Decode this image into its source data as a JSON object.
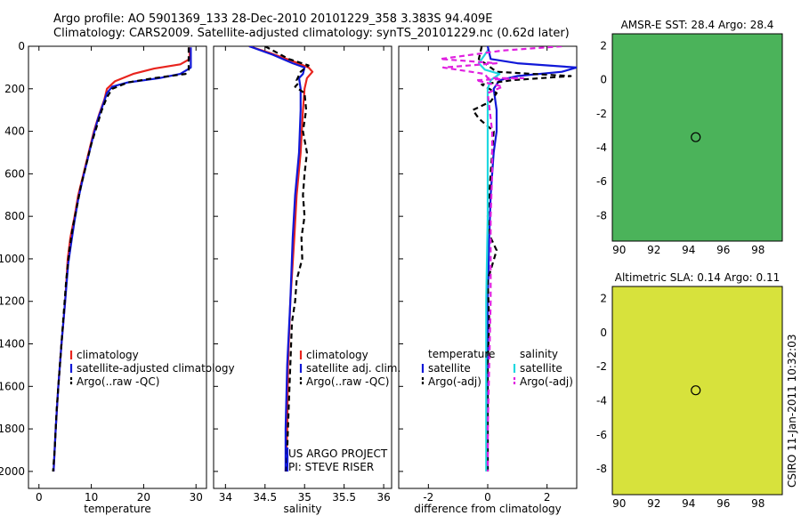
{
  "header": {
    "line1": "Argo profile: AO 5901369_133 28-Dec-2010 20101229_358 3.383S 94.409E",
    "line2": "Climatology: CARS2009. Satellite-adjusted climatology: synTS_20101229.nc (0.62d later)"
  },
  "colors": {
    "red": "#e8241e",
    "blue": "#1018d8",
    "black": "#000000",
    "cyan": "#20d8e0",
    "magenta": "#e020e0",
    "land": "#f5b98f"
  },
  "chart_data": [
    {
      "type": "line",
      "id": "temperature",
      "xlabel": "temperature",
      "ylabel": "",
      "xlim": [
        -2,
        32
      ],
      "ylim": [
        2080,
        0
      ],
      "xticks": [
        0,
        10,
        20,
        30
      ],
      "yticks": [
        0,
        200,
        400,
        600,
        800,
        1000,
        1200,
        1400,
        1600,
        1800,
        2000
      ],
      "legend": [
        "climatology",
        "satellite-adjusted climatology",
        "Argo(..raw -QC)"
      ],
      "series": [
        {
          "name": "climatology",
          "color": "red",
          "dash": "",
          "points": [
            [
              28.8,
              5
            ],
            [
              28.8,
              60
            ],
            [
              27,
              85
            ],
            [
              22,
              105
            ],
            [
              18,
              130
            ],
            [
              14.5,
              165
            ],
            [
              13,
              200
            ],
            [
              12.5,
              250
            ],
            [
              11.5,
              320
            ],
            [
              10.5,
              400
            ],
            [
              9.5,
              500
            ],
            [
              8.5,
              600
            ],
            [
              7.5,
              700
            ],
            [
              6.8,
              800
            ],
            [
              6,
              900
            ],
            [
              5.5,
              1000
            ],
            [
              5,
              1200
            ],
            [
              4.3,
              1400
            ],
            [
              3.7,
              1600
            ],
            [
              3.2,
              1800
            ],
            [
              2.8,
              2000
            ]
          ]
        },
        {
          "name": "satellite-adjusted climatology",
          "color": "blue",
          "dash": "",
          "points": [
            [
              29,
              5
            ],
            [
              29,
              100
            ],
            [
              27,
              130
            ],
            [
              23,
              150
            ],
            [
              17,
              170
            ],
            [
              14,
              190
            ],
            [
              13,
              220
            ],
            [
              12.3,
              270
            ],
            [
              11.3,
              340
            ],
            [
              10.4,
              420
            ],
            [
              9.4,
              520
            ],
            [
              8.4,
              620
            ],
            [
              7.5,
              720
            ],
            [
              6.8,
              820
            ],
            [
              6.2,
              920
            ],
            [
              5.6,
              1020
            ],
            [
              5,
              1200
            ],
            [
              4.3,
              1400
            ],
            [
              3.7,
              1600
            ],
            [
              3.2,
              1800
            ],
            [
              2.8,
              2000
            ]
          ]
        },
        {
          "name": "Argo(..raw -QC)",
          "color": "black",
          "dash": "6,4",
          "points": [
            [
              28.6,
              5
            ],
            [
              28.6,
              110
            ],
            [
              28,
              130
            ],
            [
              22,
              150
            ],
            [
              17,
              170
            ],
            [
              14,
              200
            ],
            [
              13,
              240
            ],
            [
              12,
              300
            ],
            [
              11,
              380
            ],
            [
              10,
              460
            ],
            [
              9,
              560
            ],
            [
              8,
              660
            ],
            [
              7.2,
              760
            ],
            [
              6.4,
              860
            ],
            [
              5.8,
              960
            ],
            [
              5.2,
              1100
            ],
            [
              4.6,
              1300
            ],
            [
              4,
              1500
            ],
            [
              3.4,
              1700
            ],
            [
              3,
              1900
            ],
            [
              2.7,
              2000
            ]
          ]
        }
      ]
    },
    {
      "type": "line",
      "id": "salinity",
      "xlabel": "salinity",
      "ylabel": "",
      "xlim": [
        33.85,
        36.1
      ],
      "ylim": [
        2080,
        0
      ],
      "xticks": [
        34,
        34.5,
        35,
        35.5,
        36
      ],
      "yticks": [],
      "legend": [
        "climatology",
        "satellite adj. clim.",
        "Argo(..raw -QC)"
      ],
      "series": [
        {
          "name": "climatology",
          "color": "red",
          "dash": "",
          "points": [
            [
              34.3,
              0
            ],
            [
              34.55,
              30
            ],
            [
              34.85,
              70
            ],
            [
              35.05,
              100
            ],
            [
              35.1,
              120
            ],
            [
              35.03,
              150
            ],
            [
              35.0,
              200
            ],
            [
              34.98,
              300
            ],
            [
              34.95,
              500
            ],
            [
              34.9,
              700
            ],
            [
              34.87,
              900
            ],
            [
              34.82,
              1200
            ],
            [
              34.79,
              1500
            ],
            [
              34.78,
              1800
            ],
            [
              34.76,
              2000
            ]
          ]
        },
        {
          "name": "satellite adj. clim.",
          "color": "blue",
          "dash": "",
          "points": [
            [
              34.3,
              0
            ],
            [
              34.6,
              40
            ],
            [
              34.85,
              80
            ],
            [
              35.0,
              100
            ],
            [
              34.98,
              130
            ],
            [
              34.93,
              150
            ],
            [
              34.95,
              200
            ],
            [
              34.95,
              300
            ],
            [
              34.93,
              500
            ],
            [
              34.88,
              700
            ],
            [
              34.85,
              900
            ],
            [
              34.82,
              1200
            ],
            [
              34.78,
              1500
            ],
            [
              34.76,
              1800
            ],
            [
              34.76,
              2000
            ]
          ]
        },
        {
          "name": "Argo(..raw -QC)",
          "color": "black",
          "dash": "6,4",
          "points": [
            [
              34.5,
              0
            ],
            [
              34.65,
              30
            ],
            [
              34.8,
              60
            ],
            [
              35.05,
              90
            ],
            [
              34.95,
              120
            ],
            [
              34.9,
              160
            ],
            [
              34.92,
              175
            ],
            [
              34.88,
              190
            ],
            [
              35.0,
              220
            ],
            [
              35.02,
              300
            ],
            [
              34.98,
              400
            ],
            [
              35.03,
              500
            ],
            [
              35.0,
              600
            ],
            [
              34.98,
              700
            ],
            [
              35.0,
              800
            ],
            [
              34.96,
              900
            ],
            [
              34.97,
              1000
            ],
            [
              34.9,
              1100
            ],
            [
              34.88,
              1200
            ],
            [
              34.84,
              1300
            ],
            [
              34.82,
              1500
            ],
            [
              34.8,
              1700
            ],
            [
              34.78,
              1900
            ],
            [
              34.77,
              2000
            ]
          ]
        }
      ],
      "annotations": [
        "US ARGO PROJECT",
        "PI: STEVE RISER"
      ]
    },
    {
      "type": "line",
      "id": "difference",
      "xlabel": "difference from climatology",
      "ylabel": "",
      "xlim": [
        -3,
        3
      ],
      "ylim": [
        2080,
        0
      ],
      "xticks": [
        -2,
        0,
        2
      ],
      "yticks": [],
      "legend_groups": [
        {
          "heading": "temperature",
          "items": [
            "satellite",
            "Argo(-adj)"
          ]
        },
        {
          "heading": "salinity",
          "items": [
            "satellite",
            "Argo(-adj)"
          ]
        }
      ],
      "series": [
        {
          "name": "temperature satellite",
          "color": "blue",
          "dash": "",
          "points": [
            [
              0,
              0
            ],
            [
              0.1,
              60
            ],
            [
              1,
              80
            ],
            [
              3,
              100
            ],
            [
              2.5,
              120
            ],
            [
              1,
              140
            ],
            [
              0.4,
              160
            ],
            [
              0.2,
              200
            ],
            [
              0.3,
              300
            ],
            [
              0.3,
              400
            ],
            [
              0.2,
              500
            ],
            [
              0.1,
              700
            ],
            [
              0.05,
              900
            ],
            [
              0,
              1200
            ],
            [
              0,
              1500
            ],
            [
              0,
              2000
            ]
          ]
        },
        {
          "name": "temperature Argo(-adj)",
          "color": "black",
          "dash": "6,4",
          "points": [
            [
              -0.2,
              0
            ],
            [
              -0.3,
              60
            ],
            [
              0.3,
              120
            ],
            [
              2.8,
              140
            ],
            [
              0.8,
              160
            ],
            [
              -0.2,
              180
            ],
            [
              0.3,
              220
            ],
            [
              0.1,
              260
            ],
            [
              -0.5,
              300
            ],
            [
              -0.3,
              340
            ],
            [
              0.2,
              400
            ],
            [
              0.1,
              600
            ],
            [
              0,
              800
            ],
            [
              0.1,
              900
            ],
            [
              0.3,
              960
            ],
            [
              0,
              1100
            ],
            [
              0.05,
              1300
            ],
            [
              0,
              1500
            ],
            [
              0,
              2000
            ]
          ]
        },
        {
          "name": "salinity satellite",
          "color": "cyan",
          "dash": "",
          "points": [
            [
              0,
              20
            ],
            [
              -0.3,
              80
            ],
            [
              -0.1,
              110
            ],
            [
              0.4,
              130
            ],
            [
              0.1,
              160
            ],
            [
              0,
              200
            ],
            [
              0,
              400
            ],
            [
              0,
              800
            ],
            [
              -0.05,
              1200
            ],
            [
              -0.05,
              1600
            ],
            [
              -0.05,
              2000
            ]
          ]
        },
        {
          "name": "salinity Argo(-adj)",
          "color": "magenta",
          "dash": "6,4",
          "points": [
            [
              2.5,
              0
            ],
            [
              0.5,
              20
            ],
            [
              -1.6,
              60
            ],
            [
              0.3,
              80
            ],
            [
              -1.5,
              100
            ],
            [
              -0.1,
              130
            ],
            [
              0,
              150
            ],
            [
              1.2,
              150
            ],
            [
              -0.4,
              160
            ],
            [
              0.5,
              190
            ],
            [
              0,
              220
            ],
            [
              0.15,
              400
            ],
            [
              0.15,
              600
            ],
            [
              0.1,
              800
            ],
            [
              0.1,
              1000
            ],
            [
              0.1,
              1200
            ],
            [
              0.05,
              1500
            ],
            [
              0,
              1800
            ],
            [
              0,
              2000
            ]
          ]
        }
      ]
    },
    {
      "type": "heatmap",
      "id": "sst-map",
      "title": "AMSR-E SST: 28.4 Argo: 28.4",
      "xlim": [
        89.6,
        99.4
      ],
      "ylim": [
        -9.5,
        2.7
      ],
      "xticks": [
        90,
        92,
        94,
        96,
        98
      ],
      "yticks": [
        -8,
        -6,
        -4,
        -2,
        0,
        2
      ],
      "argo_position": {
        "lon": 94.409,
        "lat": -3.383
      }
    },
    {
      "type": "heatmap",
      "id": "sla-map",
      "title": "Altimetric SLA: 0.14 Argo: 0.11",
      "xlim": [
        89.6,
        99.4
      ],
      "ylim": [
        -9.5,
        2.7
      ],
      "xticks": [
        90,
        92,
        94,
        96,
        98
      ],
      "yticks": [
        -8,
        -6,
        -4,
        -2,
        0,
        2
      ],
      "argo_position": {
        "lon": 94.409,
        "lat": -3.383
      }
    }
  ],
  "footer": {
    "credit": "CSIRO 11-Jan-2011 10:32:03"
  }
}
